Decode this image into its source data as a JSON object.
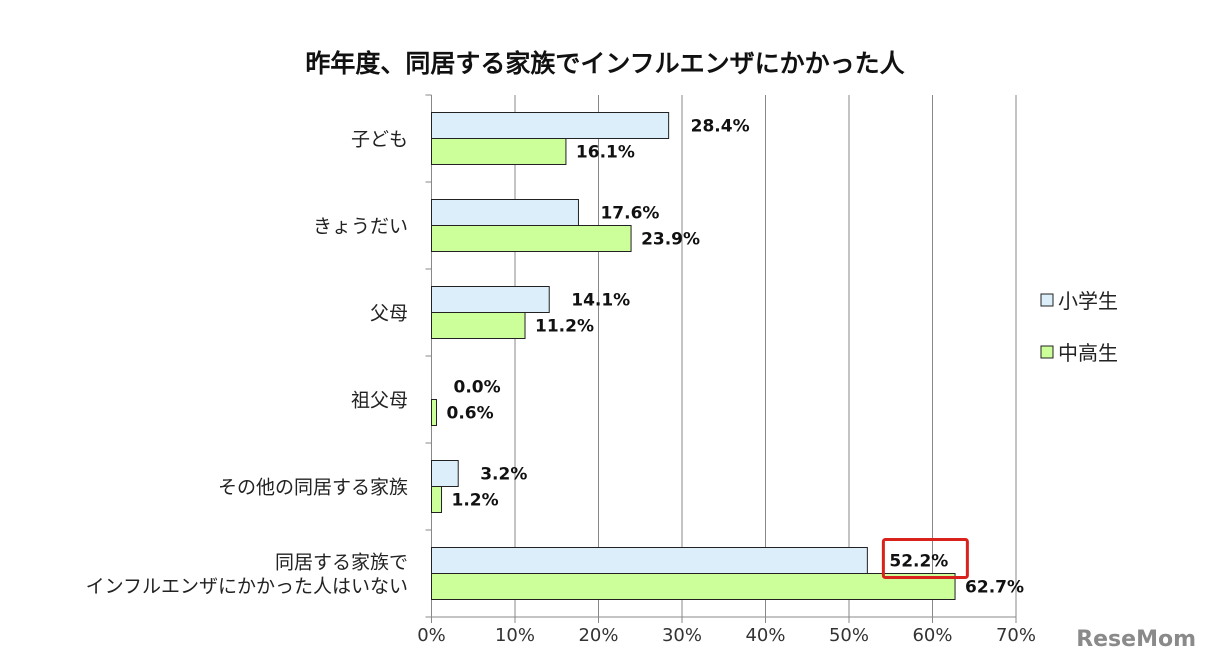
{
  "chart_data": {
    "type": "bar",
    "orientation": "horizontal",
    "title": "昨年度、同居する家族でインフルエンザにかかった人",
    "categories": [
      [
        "子ども"
      ],
      [
        "きょうだい"
      ],
      [
        "父母"
      ],
      [
        "祖父母"
      ],
      [
        "その他の同居する家族"
      ],
      [
        "同居する家族で",
        "インフルエンザにかかった人はいない"
      ]
    ],
    "series": [
      {
        "name": "小学生",
        "color": "#dbeefa",
        "values": [
          28.4,
          17.6,
          14.1,
          0.0,
          3.2,
          52.2
        ]
      },
      {
        "name": "中高生",
        "color": "#ccff99",
        "values": [
          16.1,
          23.9,
          11.2,
          0.6,
          1.2,
          62.7
        ]
      }
    ],
    "value_labels": [
      [
        "28.4%",
        "17.6%",
        "14.1%",
        "0.0%",
        "3.2%",
        "52.2%"
      ],
      [
        "16.1%",
        "23.9%",
        "11.2%",
        "0.6%",
        "1.2%",
        "62.7%"
      ]
    ],
    "highlighted_label": {
      "series": 0,
      "index": 5,
      "color": "#d9221c"
    },
    "xlim": [
      0,
      70
    ],
    "xticks": [
      "0%",
      "10%",
      "20%",
      "30%",
      "40%",
      "50%",
      "60%",
      "70%"
    ],
    "xlabel": "",
    "ylabel": "",
    "grid": true,
    "legend_position": "right"
  },
  "watermark": "ReseMom"
}
